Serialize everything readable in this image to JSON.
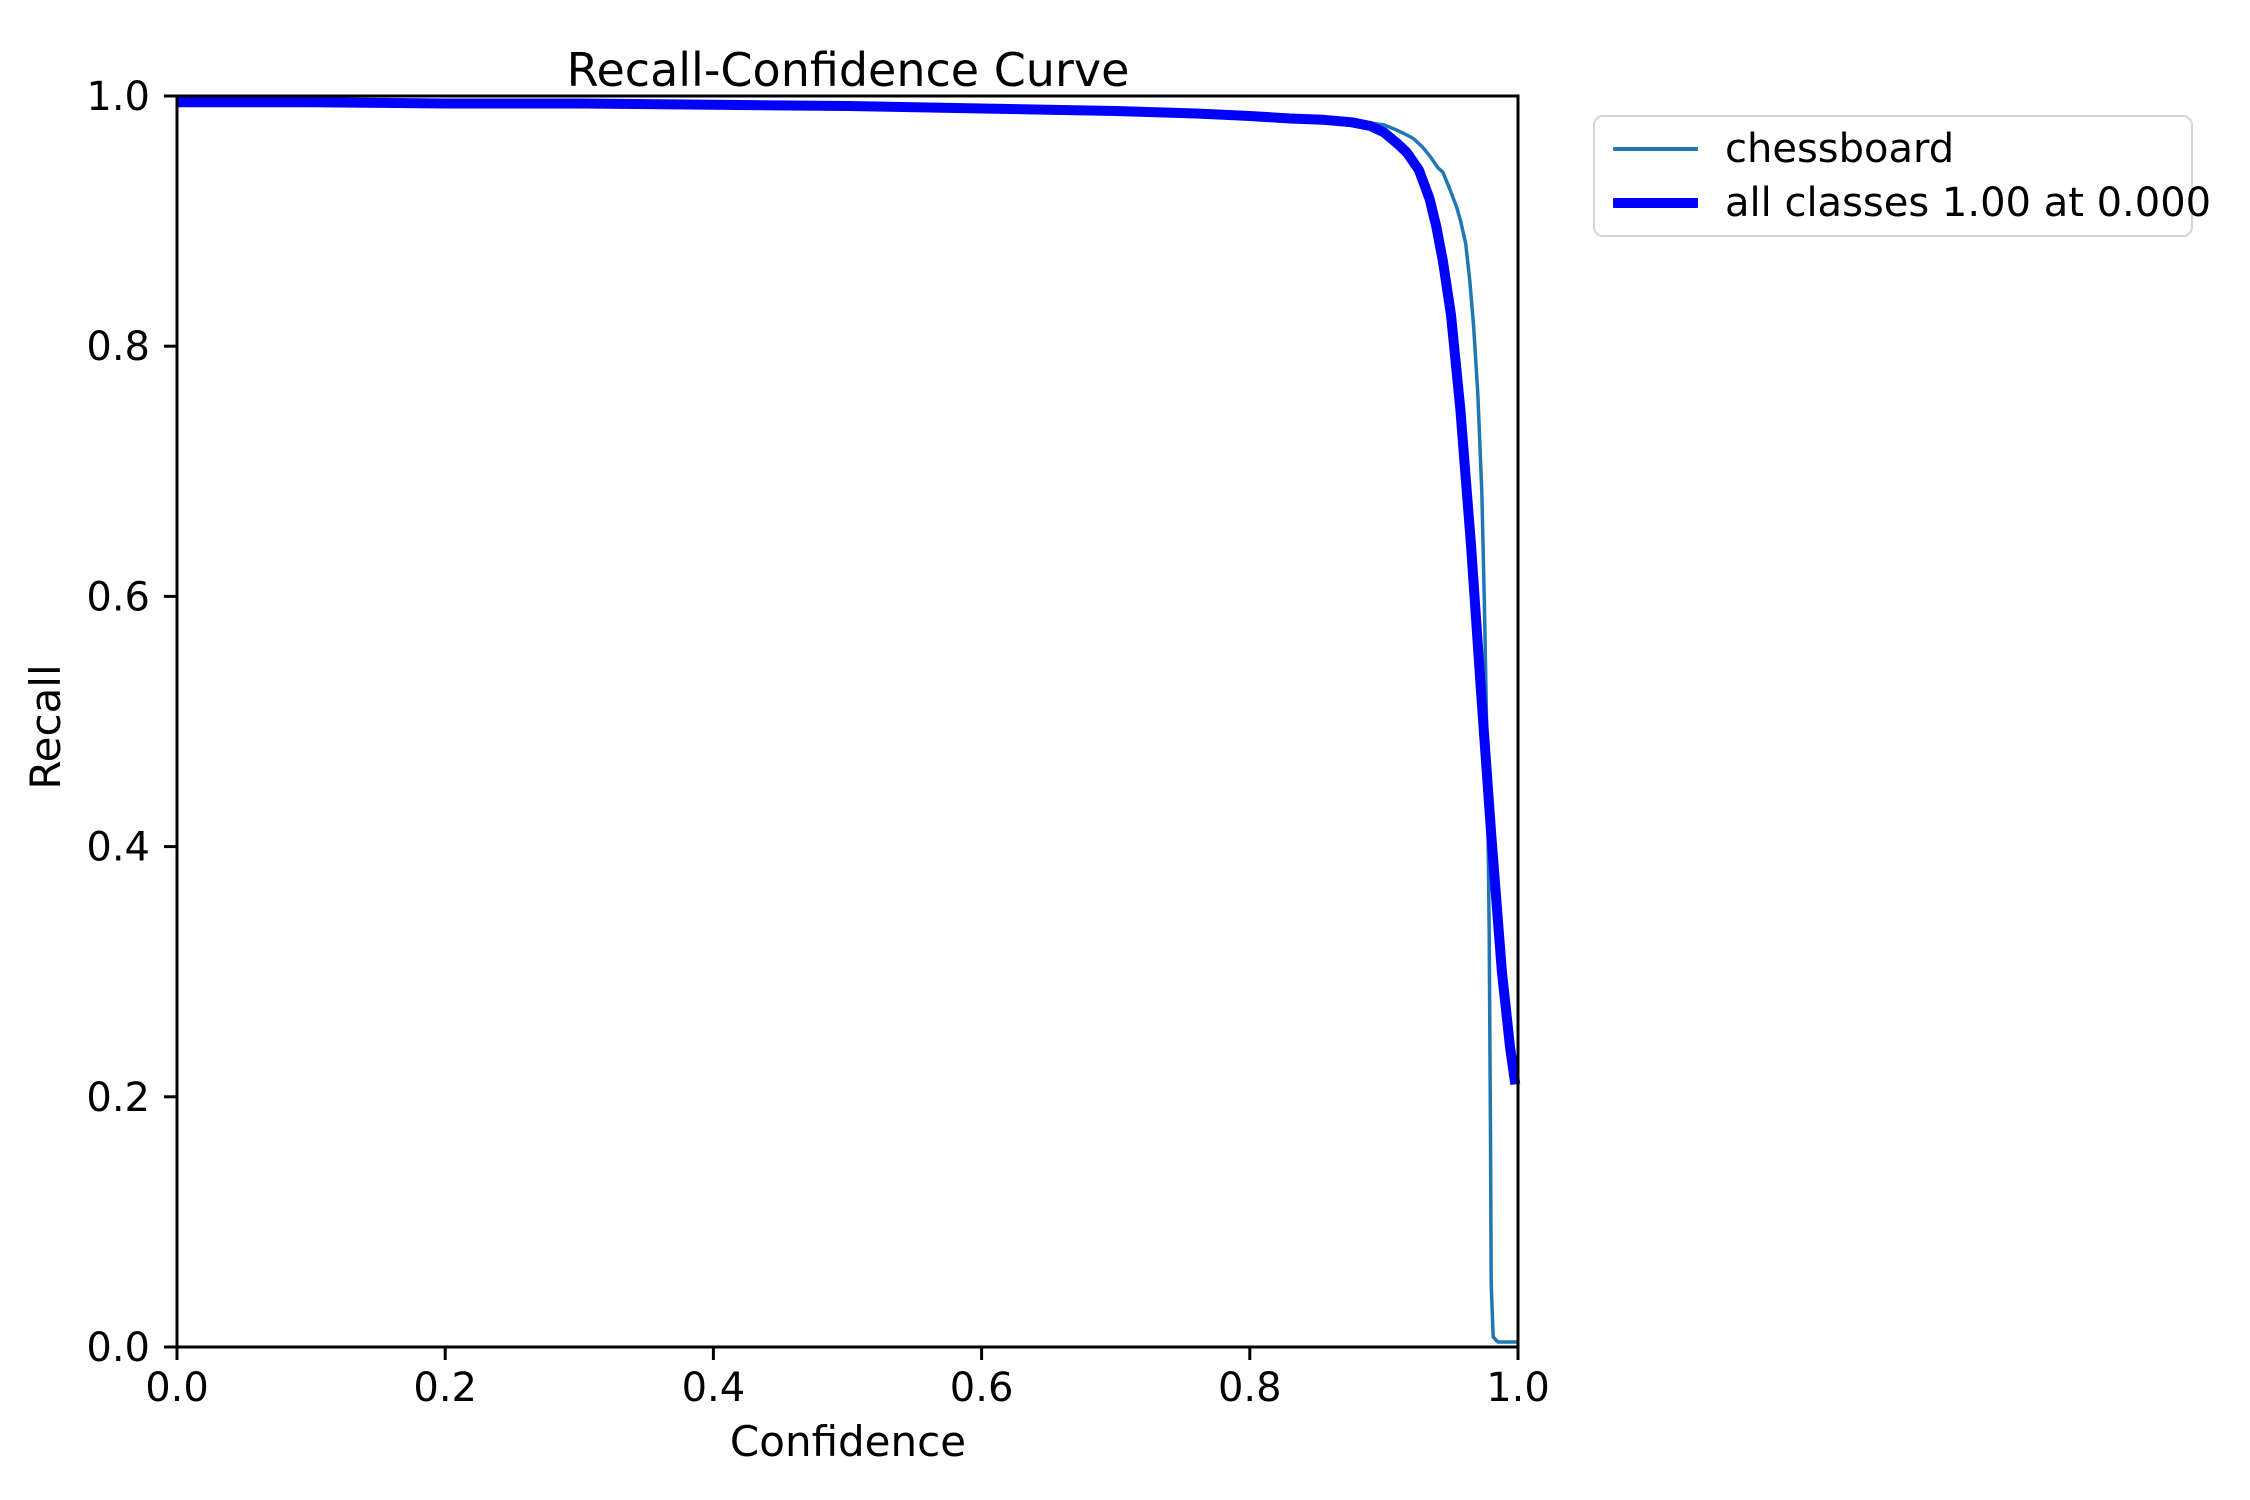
{
  "chart_data": {
    "type": "line",
    "title": "Recall-Confidence Curve",
    "xlabel": "Confidence",
    "ylabel": "Recall",
    "xlim": [
      0.0,
      1.0
    ],
    "ylim": [
      0.0,
      1.0
    ],
    "xticks": [
      0.0,
      0.2,
      0.4,
      0.6,
      0.8,
      1.0
    ],
    "yticks": [
      0.0,
      0.2,
      0.4,
      0.6,
      0.8,
      1.0
    ],
    "xtick_labels": [
      "0.0",
      "0.2",
      "0.4",
      "0.6",
      "0.8",
      "1.0"
    ],
    "ytick_labels": [
      "0.0",
      "0.2",
      "0.4",
      "0.6",
      "0.8",
      "1.0"
    ],
    "grid": false,
    "legend_position": "outside-upper-right",
    "axis_color": "#000000",
    "background_color": "#ffffff",
    "legend_border_color": "#d5d5d5",
    "series": [
      {
        "name": "chessboard",
        "color": "#1f77b4",
        "linewidth": 3.5,
        "points": [
          [
            0.0,
            0.997
          ],
          [
            0.1,
            0.996
          ],
          [
            0.2,
            0.996
          ],
          [
            0.3,
            0.995
          ],
          [
            0.4,
            0.994
          ],
          [
            0.5,
            0.992
          ],
          [
            0.6,
            0.991
          ],
          [
            0.65,
            0.99
          ],
          [
            0.7,
            0.989
          ],
          [
            0.73,
            0.988
          ],
          [
            0.76,
            0.987
          ],
          [
            0.8,
            0.985
          ],
          [
            0.83,
            0.984
          ],
          [
            0.855,
            0.982
          ],
          [
            0.87,
            0.981
          ],
          [
            0.885,
            0.979
          ],
          [
            0.9,
            0.977
          ],
          [
            0.909,
            0.973
          ],
          [
            0.915,
            0.97
          ],
          [
            0.922,
            0.966
          ],
          [
            0.929,
            0.959
          ],
          [
            0.935,
            0.951
          ],
          [
            0.94,
            0.943
          ],
          [
            0.944,
            0.939
          ],
          [
            0.949,
            0.926
          ],
          [
            0.954,
            0.912
          ],
          [
            0.957,
            0.901
          ],
          [
            0.961,
            0.882
          ],
          [
            0.964,
            0.853
          ],
          [
            0.967,
            0.815
          ],
          [
            0.97,
            0.762
          ],
          [
            0.973,
            0.684
          ],
          [
            0.975,
            0.59
          ],
          [
            0.977,
            0.47
          ],
          [
            0.9785,
            0.33
          ],
          [
            0.9795,
            0.17
          ],
          [
            0.98,
            0.05
          ],
          [
            0.9815,
            0.008
          ],
          [
            0.985,
            0.004
          ],
          [
            1.0,
            0.004
          ]
        ]
      },
      {
        "name": "all classes 1.00 at 0.000",
        "color": "#0000ff",
        "linewidth": 10,
        "points": [
          [
            0.0,
            0.995
          ],
          [
            0.1,
            0.995
          ],
          [
            0.2,
            0.994
          ],
          [
            0.3,
            0.994
          ],
          [
            0.4,
            0.993
          ],
          [
            0.5,
            0.992
          ],
          [
            0.6,
            0.99
          ],
          [
            0.65,
            0.989
          ],
          [
            0.7,
            0.988
          ],
          [
            0.73,
            0.987
          ],
          [
            0.76,
            0.986
          ],
          [
            0.8,
            0.984
          ],
          [
            0.83,
            0.982
          ],
          [
            0.855,
            0.981
          ],
          [
            0.876,
            0.979
          ],
          [
            0.89,
            0.976
          ],
          [
            0.9,
            0.971
          ],
          [
            0.91,
            0.962
          ],
          [
            0.917,
            0.955
          ],
          [
            0.926,
            0.941
          ],
          [
            0.934,
            0.918
          ],
          [
            0.939,
            0.896
          ],
          [
            0.944,
            0.868
          ],
          [
            0.95,
            0.825
          ],
          [
            0.957,
            0.75
          ],
          [
            0.965,
            0.64
          ],
          [
            0.972,
            0.53
          ],
          [
            0.98,
            0.41
          ],
          [
            0.988,
            0.3
          ],
          [
            0.994,
            0.24
          ],
          [
            0.998,
            0.21
          ]
        ]
      }
    ]
  },
  "legend": {
    "items": [
      {
        "label": "chessboard"
      },
      {
        "label": "all classes 1.00 at 0.000"
      }
    ]
  }
}
